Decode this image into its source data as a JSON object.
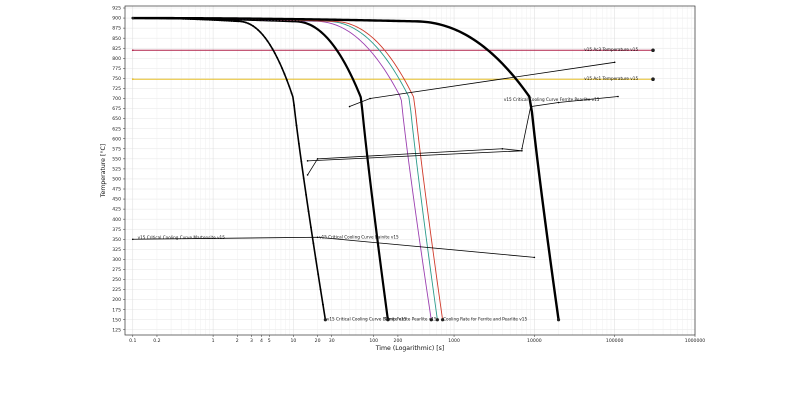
{
  "chart_data": {
    "type": "line",
    "title": "",
    "xlabel": "Time (Logarithmic) [s]",
    "ylabel": "Temperature [°C]",
    "x_scale": "log",
    "xlim": [
      0.08,
      1000000
    ],
    "ylim": [
      112,
      930
    ],
    "grid": true,
    "x_ticks": [
      {
        "value": 0.1,
        "label": "0.1"
      },
      {
        "value": 0.2,
        "label": "0.2"
      },
      {
        "value": 1,
        "label": "1"
      },
      {
        "value": 2,
        "label": "2"
      },
      {
        "value": 3,
        "label": "3"
      },
      {
        "value": 4,
        "label": "4"
      },
      {
        "value": 5,
        "label": "5"
      },
      {
        "value": 10,
        "label": "10"
      },
      {
        "value": 20,
        "label": "20"
      },
      {
        "value": 30,
        "label": "30"
      },
      {
        "value": 100,
        "label": "100"
      },
      {
        "value": 200,
        "label": "200"
      },
      {
        "value": 1000,
        "label": "1000"
      },
      {
        "value": 10000,
        "label": "10000"
      },
      {
        "value": 100000,
        "label": "100000"
      },
      {
        "value": 1000000,
        "label": "1000000"
      }
    ],
    "y_ticks": [
      125,
      150,
      175,
      200,
      225,
      250,
      275,
      300,
      325,
      350,
      375,
      400,
      425,
      450,
      475,
      500,
      525,
      550,
      575,
      600,
      625,
      650,
      675,
      700,
      725,
      750,
      775,
      800,
      825,
      850,
      875,
      900,
      925
    ],
    "horizontal_lines": [
      {
        "y": 820,
        "color": "#b0224a",
        "label": "v15 Ac3 Temperature  v15",
        "label_x": 40000
      },
      {
        "y": 748,
        "color": "#e8c02a",
        "label": "v15 Ac1 Temperature  v15",
        "label_x": 40000
      }
    ],
    "cooling_curves": [
      {
        "t0": 0.1,
        "t_mid": 10,
        "t_end": 25,
        "t_knee": 2,
        "color": "#000000",
        "width": 1.6,
        "dotted": true,
        "label": "v15 Critical Cooling Curve Martensite  v15"
      },
      {
        "t0": 0.1,
        "t_mid": 70,
        "t_end": 150,
        "t_knee": 10,
        "color": "#000000",
        "width": 2.2,
        "dotted": true,
        "label": "v15 Critical Cooling Curve Bainite  v15"
      },
      {
        "t0": 0.1,
        "t_mid": 220,
        "t_end": 520,
        "t_knee": 18,
        "color": "#9b3fb0",
        "width": 0.9,
        "dotted": false,
        "label": ""
      },
      {
        "t0": 0.1,
        "t_mid": 280,
        "t_end": 620,
        "t_knee": 25,
        "color": "#2a9b8a",
        "width": 0.9,
        "dotted": false,
        "label": ""
      },
      {
        "t0": 0.1,
        "t_mid": 320,
        "t_end": 720,
        "t_knee": 30,
        "color": "#d03a2a",
        "width": 0.9,
        "dotted": false,
        "label": "Cooling Rate for Ferrite and Pearlite  v15"
      },
      {
        "t0": 0.1,
        "t_mid": 9000,
        "t_end": 20000,
        "t_knee": 300,
        "color": "#000000",
        "width": 2.4,
        "dotted": true,
        "label": "v15 Critical Cooling Curve Ferrite Pearlite  v15"
      }
    ],
    "transformation_lines": [
      {
        "points": [
          [
            0.1,
            350
          ],
          [
            20,
            355
          ],
          [
            10000,
            305
          ]
        ],
        "color": "#000000"
      },
      {
        "points": [
          [
            15,
            510
          ],
          [
            20,
            550
          ],
          [
            4000,
            575
          ],
          [
            7000,
            570
          ],
          [
            15,
            545
          ]
        ],
        "color": "#000000"
      },
      {
        "points": [
          [
            50,
            680
          ],
          [
            90,
            700
          ],
          [
            100000,
            790
          ]
        ],
        "color": "#000000"
      },
      {
        "points": [
          [
            7000,
            575
          ],
          [
            9000,
            680
          ],
          [
            20000,
            690
          ],
          [
            110000,
            705
          ]
        ],
        "color": "#000000"
      }
    ],
    "annotations": [
      {
        "text": "v15 Critical Cooling Curve Martensite  v15",
        "x": 0.11,
        "y": 354
      },
      {
        "text": "v15 Critical Cooling Curve Bainite  v15",
        "x": 20,
        "y": 356
      },
      {
        "text": "v15 Critical Cooling Curve Ferrite Pearlite  v15",
        "x": 4000,
        "y": 697
      },
      {
        "text": "v15 Critical Cooling Curve Bainite v15",
        "x": 25,
        "y": 152
      },
      {
        "text": "Temp Ferrite Pearlite  v15",
        "x": 130,
        "y": 152
      },
      {
        "text": "Cooling Rate for Ferrite and Pearlite  v15",
        "x": 700,
        "y": 152
      },
      {
        "text": "v15 Ac3 Temperature  v15",
        "x": 40000,
        "y": 822
      },
      {
        "text": "v15 Ac1 Temperature  v15",
        "x": 40000,
        "y": 750
      }
    ]
  }
}
